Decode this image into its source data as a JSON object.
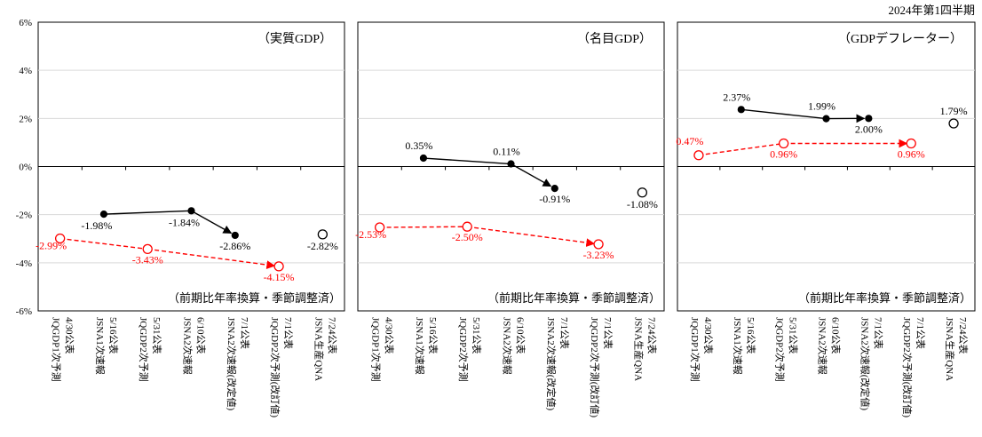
{
  "chart_data": {
    "type": "line",
    "period_label": "2024年第1四半期",
    "y_ticks": [
      "6%",
      "4%",
      "2%",
      "0%",
      "-2%",
      "-4%",
      "-6%"
    ],
    "ylim": [
      -6,
      6
    ],
    "grid": true,
    "unit": "%",
    "categories": [
      [
        "JQGDP1次予測",
        "4/30公表"
      ],
      [
        "JSNA1次速報",
        "5/16公表"
      ],
      [
        "JQGDP2次予測",
        "5/31公表"
      ],
      [
        "JSNA2次速報",
        "6/10公表"
      ],
      [
        "JSNA2次速報(改定値)",
        "7/1公表"
      ],
      [
        "JQGDP2次予測(改訂値)",
        "7/1公表"
      ],
      [
        "JSNA生産QNA",
        "7/24公表"
      ]
    ],
    "panels": [
      {
        "title": "（実質GDP）",
        "note": "（前期比年率換算・季節調整済）",
        "series": [
          {
            "color": "#ff0000",
            "style": "dashed",
            "marker": "open-circle",
            "points": [
              [
                0,
                -2.99
              ],
              [
                2,
                -3.43
              ],
              [
                5,
                -4.15
              ]
            ],
            "labels": [
              "-2.99%",
              "-3.43%",
              "-4.15%"
            ]
          },
          {
            "color": "#000000",
            "style": "solid",
            "marker": "filled-circle",
            "points": [
              [
                1,
                -1.98
              ],
              [
                3,
                -1.84
              ],
              [
                4,
                -2.86
              ]
            ],
            "labels": [
              "-1.98%",
              "-1.84%",
              "-2.86%"
            ]
          },
          {
            "color": "#000000",
            "style": "none",
            "marker": "open-circle",
            "points": [
              [
                6,
                -2.82
              ]
            ],
            "labels": [
              "-2.82%"
            ]
          }
        ]
      },
      {
        "title": "（名目GDP）",
        "note": "（前期比年率換算・季節調整済）",
        "series": [
          {
            "color": "#ff0000",
            "style": "dashed",
            "marker": "open-circle",
            "points": [
              [
                0,
                -2.53
              ],
              [
                2,
                -2.5
              ],
              [
                5,
                -3.23
              ]
            ],
            "labels": [
              "-2.53%",
              "-2.50%",
              "-3.23%"
            ]
          },
          {
            "color": "#000000",
            "style": "solid",
            "marker": "filled-circle",
            "points": [
              [
                1,
                0.35
              ],
              [
                3,
                0.11
              ],
              [
                4,
                -0.91
              ]
            ],
            "labels": [
              "0.35%",
              "0.11%",
              "-0.91%"
            ]
          },
          {
            "color": "#000000",
            "style": "none",
            "marker": "open-circle",
            "points": [
              [
                6,
                -1.08
              ]
            ],
            "labels": [
              "-1.08%"
            ]
          }
        ]
      },
      {
        "title": "（GDPデフレーター）",
        "note": "（前期比年率換算・季節調整済）",
        "series": [
          {
            "color": "#ff0000",
            "style": "dashed",
            "marker": "open-circle",
            "points": [
              [
                0,
                0.47
              ],
              [
                2,
                0.96
              ],
              [
                5,
                0.96
              ]
            ],
            "labels": [
              "0.47%",
              "0.96%",
              "0.96%"
            ]
          },
          {
            "color": "#000000",
            "style": "solid",
            "marker": "filled-circle",
            "points": [
              [
                1,
                2.37
              ],
              [
                3,
                1.99
              ],
              [
                4,
                2.0
              ]
            ],
            "labels": [
              "2.37%",
              "1.99%",
              "2.00%"
            ]
          },
          {
            "color": "#000000",
            "style": "none",
            "marker": "open-circle",
            "points": [
              [
                6,
                1.79
              ]
            ],
            "labels": [
              "1.79%"
            ]
          }
        ]
      }
    ]
  }
}
